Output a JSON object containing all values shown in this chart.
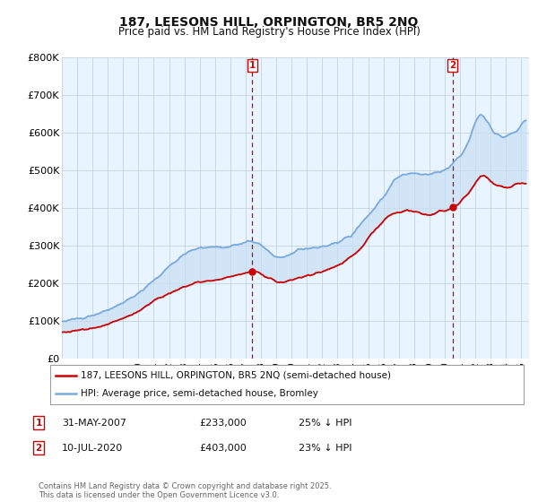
{
  "title": "187, LEESONS HILL, ORPINGTON, BR5 2NQ",
  "subtitle": "Price paid vs. HM Land Registry's House Price Index (HPI)",
  "ylim": [
    0,
    800000
  ],
  "yticks": [
    0,
    100000,
    200000,
    300000,
    400000,
    500000,
    600000,
    700000,
    800000
  ],
  "ytick_labels": [
    "£0",
    "£100K",
    "£200K",
    "£300K",
    "£400K",
    "£500K",
    "£600K",
    "£700K",
    "£800K"
  ],
  "xlim_start": 1995.0,
  "xlim_end": 2025.5,
  "transaction1": {
    "year": 2007.42,
    "price": 233000,
    "label": "1",
    "date": "31-MAY-2007",
    "pct": "25% ↓ HPI"
  },
  "transaction2": {
    "year": 2020.53,
    "price": 403000,
    "label": "2",
    "date": "10-JUL-2020",
    "pct": "23% ↓ HPI"
  },
  "legend_property": "187, LEESONS HILL, ORPINGTON, BR5 2NQ (semi-detached house)",
  "legend_hpi": "HPI: Average price, semi-detached house, Bromley",
  "footer": "Contains HM Land Registry data © Crown copyright and database right 2025.\nThis data is licensed under the Open Government Licence v3.0.",
  "line_red": "#cc0000",
  "line_blue": "#7aaadd",
  "fill_blue": "#ddeeff",
  "background_color": "#ffffff",
  "title_fontsize": 10,
  "subtitle_fontsize": 8.5
}
